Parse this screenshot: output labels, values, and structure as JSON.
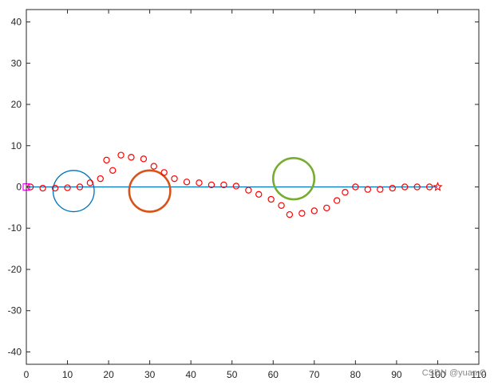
{
  "chart_data": {
    "type": "scatter",
    "title": "",
    "xlabel": "",
    "ylabel": "",
    "xlim": [
      0,
      110
    ],
    "ylim": [
      -43,
      43
    ],
    "grid": false,
    "x_ticks": [
      0,
      10,
      20,
      30,
      40,
      50,
      60,
      70,
      80,
      90,
      100,
      110
    ],
    "y_ticks": [
      -40,
      -30,
      -20,
      -10,
      0,
      10,
      20,
      30,
      40
    ],
    "reference_line": {
      "x": [
        0,
        100
      ],
      "y": [
        0,
        0
      ],
      "color": "#0072BD"
    },
    "obstacles": [
      {
        "cx": 11.5,
        "cy": -1,
        "r": 5,
        "color": "#0072BD"
      },
      {
        "cx": 30,
        "cy": -1,
        "r": 5,
        "color": "#D95319"
      },
      {
        "cx": 65,
        "cy": 2,
        "r": 5,
        "color": "#77AC30"
      }
    ],
    "start_point": {
      "x": 0,
      "y": 0,
      "color": "#FF00FF"
    },
    "goal_point": {
      "x": 100,
      "y": 0,
      "color": "#FF0000"
    },
    "series": [
      {
        "marker": "circle",
        "color": "#FF0000",
        "points": [
          [
            1,
            0
          ],
          [
            4,
            -0.3
          ],
          [
            7,
            -0.3
          ],
          [
            10,
            -0.2
          ],
          [
            13,
            0
          ],
          [
            15.5,
            1
          ],
          [
            18,
            2
          ],
          [
            19.5,
            6.5
          ],
          [
            21,
            4
          ],
          [
            23,
            7.7
          ],
          [
            25.5,
            7.2
          ],
          [
            28.5,
            6.8
          ],
          [
            31,
            5
          ],
          [
            33.5,
            3.5
          ],
          [
            36,
            2
          ],
          [
            39,
            1.2
          ],
          [
            42,
            1
          ],
          [
            45,
            0.5
          ],
          [
            48,
            0.5
          ],
          [
            51,
            0.2
          ],
          [
            54,
            -0.8
          ],
          [
            56.5,
            -1.8
          ],
          [
            59.5,
            -3
          ],
          [
            62,
            -4.5
          ],
          [
            64,
            -6.7
          ],
          [
            67,
            -6.4
          ],
          [
            70,
            -5.8
          ],
          [
            73,
            -5.1
          ],
          [
            75.5,
            -3.3
          ],
          [
            77.5,
            -1.3
          ],
          [
            80,
            0
          ],
          [
            83,
            -0.6
          ],
          [
            86,
            -0.6
          ],
          [
            89,
            -0.3
          ],
          [
            92,
            0
          ],
          [
            95,
            0
          ],
          [
            98,
            0
          ]
        ]
      }
    ]
  },
  "watermark": "CSDN @yuan C"
}
